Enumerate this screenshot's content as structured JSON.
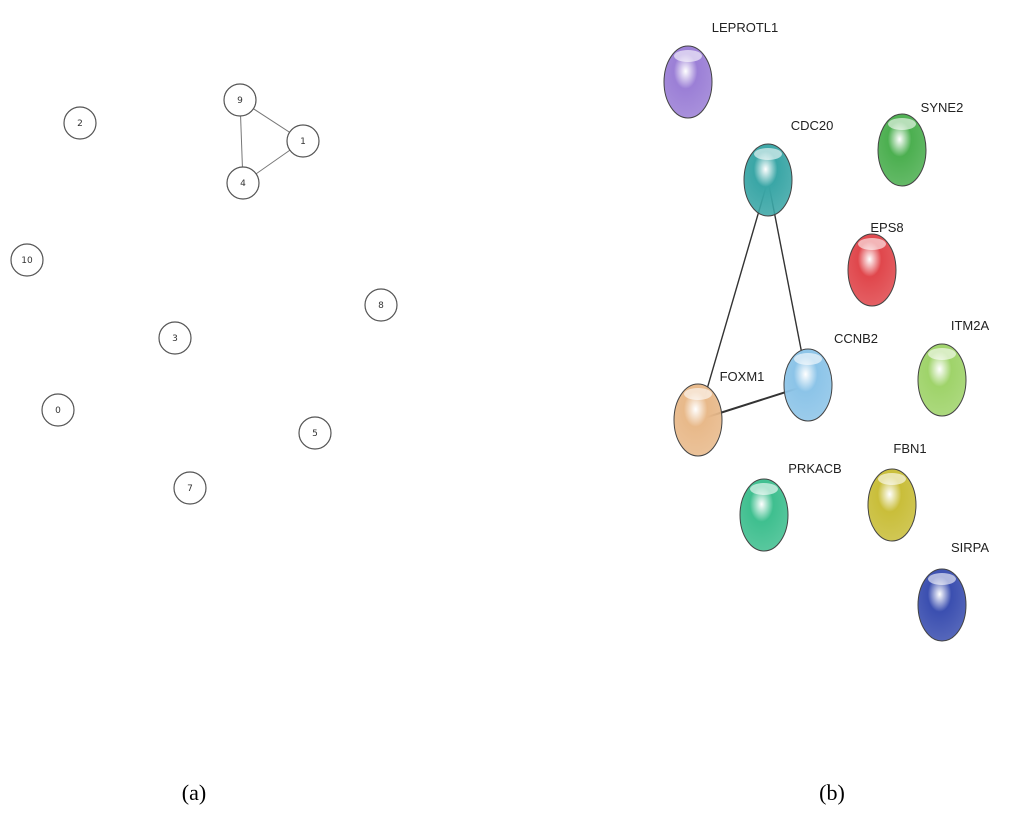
{
  "panel_a": {
    "nodes": [
      {
        "label": "2"
      },
      {
        "label": "9"
      },
      {
        "label": "1"
      },
      {
        "label": "4"
      },
      {
        "label": "10"
      },
      {
        "label": "8"
      },
      {
        "label": "3"
      },
      {
        "label": "0"
      },
      {
        "label": "5"
      },
      {
        "label": "7"
      }
    ],
    "caption": "(a)"
  },
  "panel_b": {
    "nodes": [
      {
        "label": "LEPROTL1"
      },
      {
        "label": "CDC20"
      },
      {
        "label": "SYNE2"
      },
      {
        "label": "EPS8"
      },
      {
        "label": "CCNB2"
      },
      {
        "label": "ITM2A"
      },
      {
        "label": "FOXM1"
      },
      {
        "label": "PRKACB"
      },
      {
        "label": "FBN1"
      },
      {
        "label": "SIRPA"
      }
    ],
    "caption": "(b)"
  }
}
